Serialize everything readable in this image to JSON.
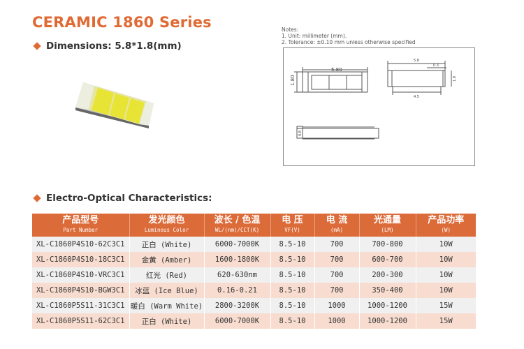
{
  "title": "CERAMIC 1860 Series",
  "dimensions_label": "Dimensions: 5.8*1.8(mm)",
  "notes": {
    "heading": "Notes:",
    "items": [
      "1. Unit: millimeter (mm).",
      "2. Tolerance: ±0.10 mm unless otherwise specified"
    ]
  },
  "drawing": {
    "top_width": "5.80",
    "top_height": "1.80",
    "side_width": "5.8",
    "side_small": "0.3",
    "side_inner": "4.5",
    "side_height": "1.8",
    "thickness": "0.8"
  },
  "section_label": "Electro-Optical Characteristics:",
  "colors": {
    "accent": "#e06a34",
    "header_bg": "#dc6b3a",
    "row_odd": "#f0f0f0",
    "row_even": "#f8dccf"
  },
  "table": {
    "headers": [
      {
        "cn": "产品型号",
        "en": "Part Number"
      },
      {
        "cn": "发光颜色",
        "en": "Luminous Color"
      },
      {
        "cn": "波长 / 色温",
        "en": "WL/(nm)/CCT(K)"
      },
      {
        "cn": "电 压",
        "en": "VF(V)"
      },
      {
        "cn": "电 流",
        "en": "(mA)"
      },
      {
        "cn": "光通量",
        "en": "(LM)"
      },
      {
        "cn": "产品功率",
        "en": "(W)"
      }
    ],
    "rows": [
      [
        "XL-C1860P4S10-62C3C1",
        "正白 (White)",
        "6000-7000K",
        "8.5-10",
        "700",
        "700-800",
        "10W"
      ],
      [
        "XL-C1860P4S10-18C3C1",
        "金黄 (Amber)",
        "1600-1800K",
        "8.5-10",
        "700",
        "600-700",
        "10W"
      ],
      [
        "XL-C1860P4S10-VRC3C1",
        "红光 (Red)",
        "620-630nm",
        "8.5-10",
        "700",
        "200-300",
        "10W"
      ],
      [
        "XL-C1860P4S10-BGW3C1",
        "冰蓝 (Ice Blue)",
        "0.16-0.21",
        "8.5-10",
        "700",
        "350-400",
        "10W"
      ],
      [
        "XL-C1860P5S11-31C3C1",
        "暖白 (Warm White)",
        "2800-3200K",
        "8.5-10",
        "1000",
        "1000-1200",
        "15W"
      ],
      [
        "XL-C1860P5S11-62C3C1",
        "正白 (White)",
        "6000-7000K",
        "8.5-10",
        "1000",
        "1000-1200",
        "15W"
      ]
    ]
  }
}
